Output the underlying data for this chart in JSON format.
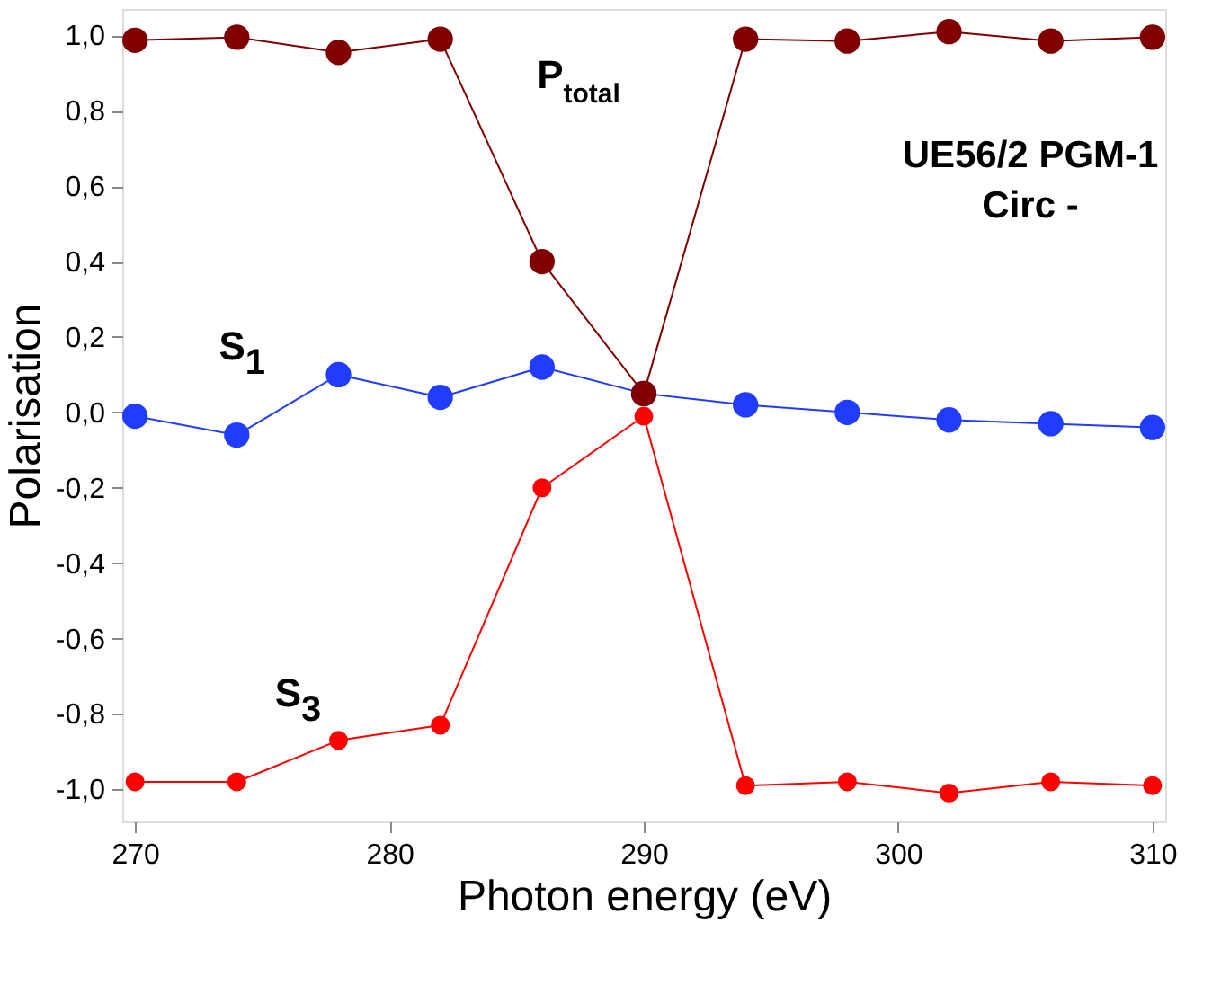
{
  "chart_data": {
    "type": "line",
    "xlabel": "Photon energy (eV)",
    "ylabel": "Polarisation",
    "x": [
      270,
      274,
      278,
      282,
      286,
      290,
      294,
      298,
      302,
      306,
      310
    ],
    "series": [
      {
        "name": "P$_{total}$",
        "color": "#800000",
        "values": [
          0.987,
          0.995,
          0.955,
          0.99,
          0.4,
          0.05,
          0.99,
          0.985,
          1.01,
          0.985,
          0.995
        ]
      },
      {
        "name": "S$_{1}$",
        "color": "#1f3cff",
        "values": [
          -0.01,
          -0.06,
          0.1,
          0.04,
          0.12,
          0.05,
          0.02,
          0.0,
          -0.02,
          -0.03,
          -0.04
        ]
      },
      {
        "name": "S$_{3}$",
        "color": "#ff0000",
        "values": [
          -0.98,
          -0.98,
          -0.87,
          -0.83,
          -0.2,
          -0.01,
          -0.99,
          -0.98,
          -1.01,
          -0.98,
          -0.99
        ]
      }
    ],
    "annotations": [
      "UE56/2 PGM-1",
      "Circ -"
    ],
    "xlim": [
      269.5,
      310.5
    ],
    "xticks": [
      270,
      280,
      290,
      300,
      310
    ],
    "ylim": [
      -1.085,
      1.07
    ],
    "yticks": [
      {
        "value": -1.0,
        "label": "-1,0"
      },
      {
        "value": -0.8,
        "label": "-0,8"
      },
      {
        "value": -0.6,
        "label": "-0,6"
      },
      {
        "value": -0.4,
        "label": "-0,4"
      },
      {
        "value": -0.2,
        "label": "-0,2"
      },
      {
        "value": 0.0,
        "label": "0,0"
      },
      {
        "value": 0.2,
        "label": "0,2"
      },
      {
        "value": 0.4,
        "label": "0,4"
      },
      {
        "value": 0.6,
        "label": "0,6"
      },
      {
        "value": 0.8,
        "label": "0,8"
      },
      {
        "value": 1.0,
        "label": "1,0"
      }
    ],
    "marker": "circle",
    "line_style": "solid",
    "grid": false
  }
}
